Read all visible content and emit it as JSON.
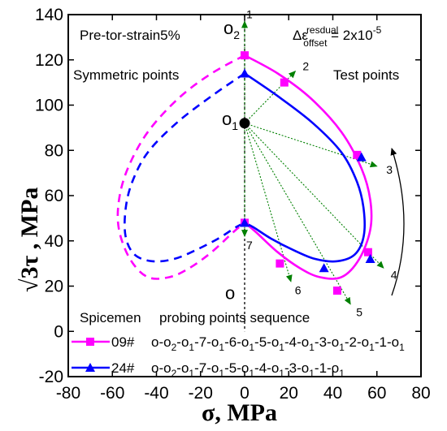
{
  "chart_data": {
    "type": "line",
    "xlabel": "σ,  MPa",
    "ylabel": "√3τ  ,  MPa",
    "xlim": [
      -80,
      80
    ],
    "ylim": [
      -20,
      140
    ],
    "xticks": [
      -80,
      -60,
      -40,
      -20,
      0,
      20,
      40,
      60,
      80
    ],
    "yticks": [
      -20,
      0,
      20,
      40,
      60,
      80,
      100,
      120,
      140
    ],
    "xtick_labels": [
      "-80",
      "-60",
      "-40",
      "-20",
      "0",
      "20",
      "40",
      "60",
      "80"
    ],
    "ytick_labels": [
      "-20",
      "0",
      "20",
      "40",
      "60",
      "80",
      "100",
      "120",
      "140"
    ],
    "grid": false,
    "colors": {
      "s09": "#ff00ff",
      "s24": "#0000ff",
      "probe": "#008000",
      "axis": "#000000"
    },
    "annotations": {
      "pretorsion": "Pre-tor-strain5%",
      "offset_base": "Δε",
      "offset_sup": "resdual",
      "offset_sub": "offset",
      "offset_rhs": " = 2x10",
      "offset_exp": "-5",
      "symmetric": "Symmetric points",
      "test": "Test points",
      "o2": "o",
      "o2_sub": "2",
      "o1": "o",
      "o1_sub": "1",
      "o": "o"
    },
    "center_o1": {
      "x": 0,
      "y": 92
    },
    "center_o2": {
      "x": 0,
      "y": 140
    },
    "center_o": {
      "x": 0,
      "y": 0
    },
    "probes": [
      {
        "label": "1",
        "x": 0,
        "y": 137
      },
      {
        "label": "2",
        "x": 23,
        "y": 115
      },
      {
        "label": "3",
        "x": 60,
        "y": 73
      },
      {
        "label": "4",
        "x": 63,
        "y": 28
      },
      {
        "label": "5",
        "x": 48,
        "y": 12
      },
      {
        "label": "6",
        "x": 21,
        "y": 22
      },
      {
        "label": "7",
        "x": 0,
        "y": 42
      }
    ],
    "series": [
      {
        "name": "09#",
        "marker": "square",
        "points": [
          {
            "x": 0,
            "y": 122
          },
          {
            "x": 18,
            "y": 110
          },
          {
            "x": 51,
            "y": 78
          },
          {
            "x": 56,
            "y": 35
          },
          {
            "x": 42,
            "y": 18
          },
          {
            "x": 16,
            "y": 30
          },
          {
            "x": 0,
            "y": 48
          }
        ],
        "test_curve": [
          [
            0,
            122
          ],
          [
            15,
            114
          ],
          [
            30,
            103
          ],
          [
            44,
            88
          ],
          [
            53,
            72
          ],
          [
            57,
            58
          ],
          [
            57,
            45
          ],
          [
            52,
            32
          ],
          [
            44,
            24
          ],
          [
            34,
            24
          ],
          [
            25,
            28
          ],
          [
            15,
            35
          ],
          [
            5,
            44
          ],
          [
            0,
            48
          ]
        ],
        "symmetric_curve": [
          [
            0,
            122
          ],
          [
            -15,
            114
          ],
          [
            -30,
            103
          ],
          [
            -44,
            88
          ],
          [
            -53,
            72
          ],
          [
            -57,
            58
          ],
          [
            -57,
            45
          ],
          [
            -52,
            32
          ],
          [
            -44,
            24
          ],
          [
            -34,
            24
          ],
          [
            -25,
            28
          ],
          [
            -15,
            35
          ],
          [
            -5,
            44
          ],
          [
            0,
            48
          ]
        ]
      },
      {
        "name": "24#",
        "marker": "triangle",
        "points": [
          {
            "x": 0,
            "y": 114
          },
          {
            "x": 53,
            "y": 77
          },
          {
            "x": 57,
            "y": 32
          },
          {
            "x": 36,
            "y": 28
          },
          {
            "x": 0,
            "y": 48
          }
        ],
        "test_curve": [
          [
            0,
            114
          ],
          [
            15,
            104
          ],
          [
            31,
            92
          ],
          [
            44,
            79
          ],
          [
            51,
            66
          ],
          [
            54,
            54
          ],
          [
            54,
            42
          ],
          [
            50,
            34
          ],
          [
            42,
            31
          ],
          [
            32,
            32
          ],
          [
            22,
            36
          ],
          [
            12,
            41
          ],
          [
            4,
            46
          ],
          [
            0,
            48
          ]
        ],
        "symmetric_curve": [
          [
            0,
            114
          ],
          [
            -15,
            104
          ],
          [
            -31,
            92
          ],
          [
            -44,
            79
          ],
          [
            -51,
            66
          ],
          [
            -54,
            54
          ],
          [
            -54,
            42
          ],
          [
            -50,
            34
          ],
          [
            -42,
            31
          ],
          [
            -32,
            32
          ],
          [
            -22,
            36
          ],
          [
            -12,
            41
          ],
          [
            -4,
            46
          ],
          [
            0,
            48
          ]
        ]
      }
    ],
    "legend": {
      "placement": "bottom-left",
      "header_specimen": "Spicemen",
      "header_sequence": "probing points sequence",
      "entries": [
        {
          "name": "09#",
          "sequence": "o-o2-o1-7-o1-6-o1-5-o1-4-o1-3-o1-2-o1-1-o1"
        },
        {
          "name": "24#",
          "sequence": "o-o2-o1-7-o1-5-o1-4-o1-3-o1-1-o1"
        }
      ]
    }
  }
}
